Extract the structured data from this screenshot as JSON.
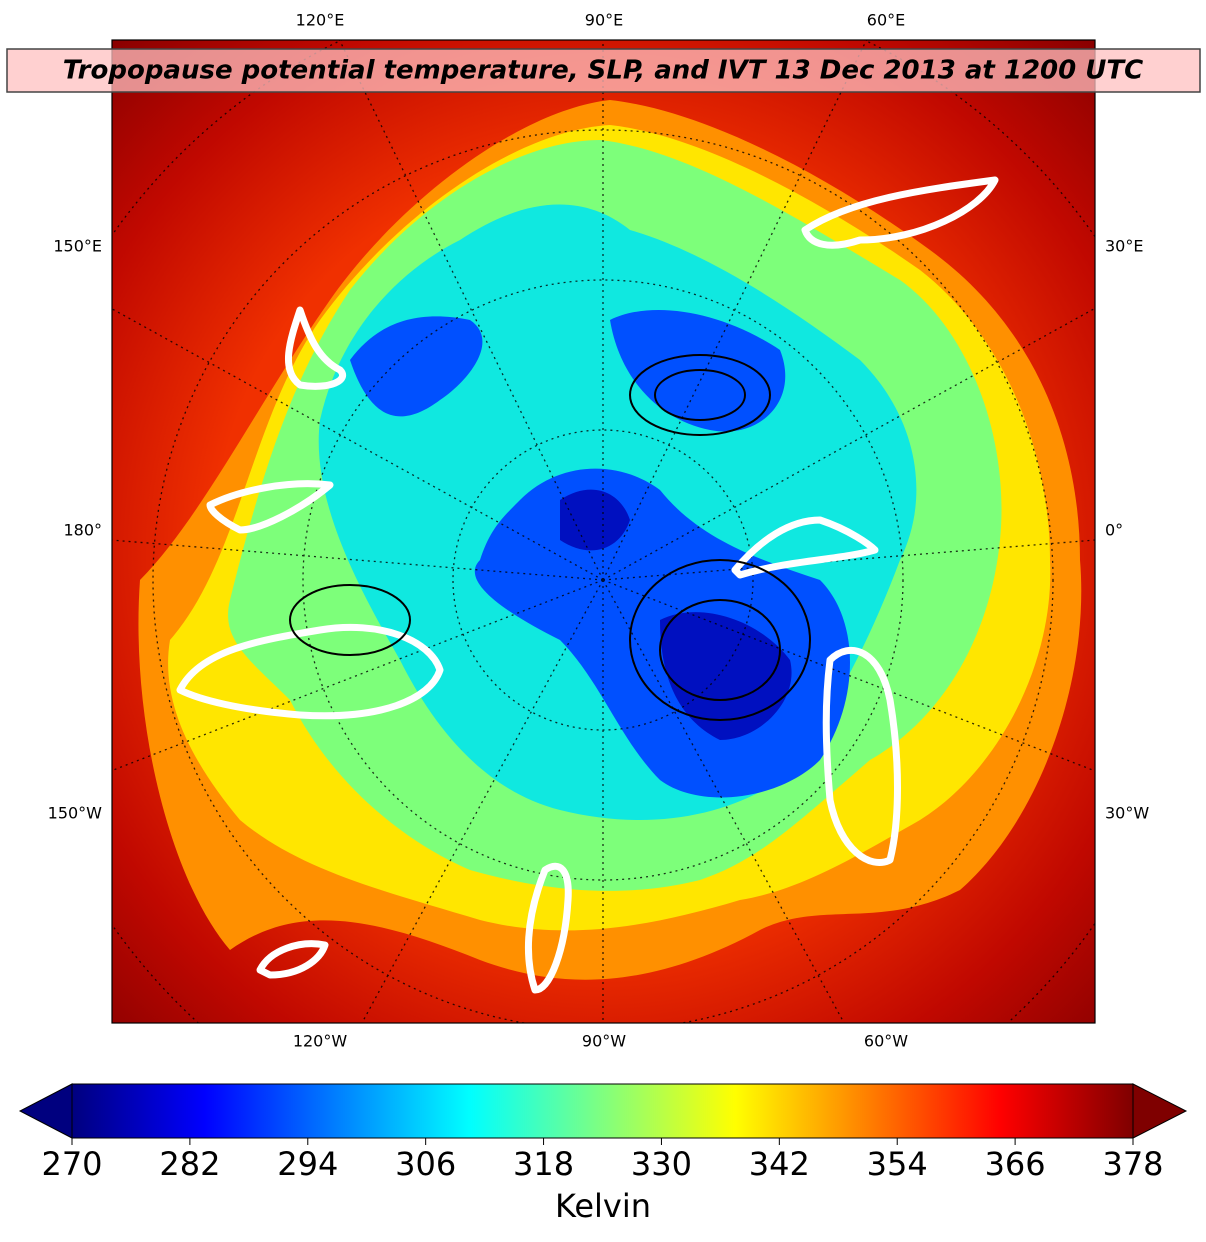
{
  "title": "Tropopause potential temperature, SLP, and IVT 13 Dec 2013 at 1200 UTC",
  "labels": {
    "top": [
      "120°E",
      "90°E",
      "60°E"
    ],
    "left": [
      "150°E",
      "180°",
      "150°W"
    ],
    "right": [
      "30°E",
      "0°",
      "30°W"
    ],
    "bottom": [
      "120°W",
      "90°W",
      "60°W"
    ]
  },
  "colorbar": {
    "label": "Kelvin",
    "lim": [
      270,
      378
    ],
    "ticks": [
      270,
      282,
      294,
      306,
      318,
      330,
      342,
      354,
      366,
      378
    ]
  }
}
